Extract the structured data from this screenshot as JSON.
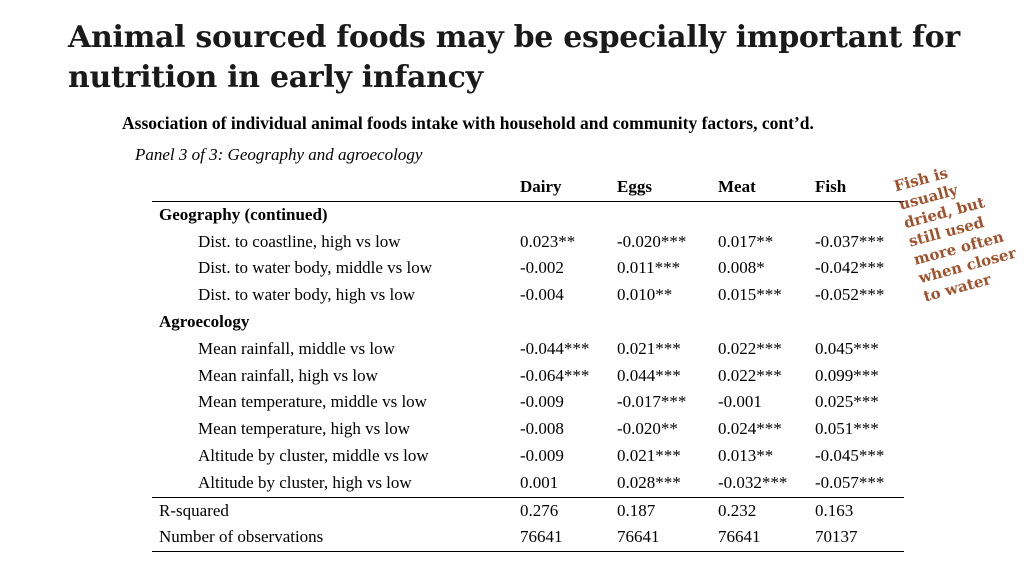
{
  "title": "Animal sourced foods may be especially important for nutrition in early infancy",
  "subtitle": "Association of individual animal foods intake with household and community factors, cont’d.",
  "panel": "Panel 3 of 3: Geography and agroecology",
  "table": {
    "columns": [
      "",
      "Dairy",
      "Eggs",
      "Meat",
      "Fish"
    ],
    "sections": [
      {
        "heading": "Geography (continued)",
        "rows": [
          {
            "label": "Dist. to coastline, high vs low",
            "dairy": "0.023**",
            "eggs": "-0.020***",
            "meat": "0.017**",
            "fish": "-0.037***"
          },
          {
            "label": "Dist. to water body, middle vs low",
            "dairy": "-0.002",
            "eggs": "0.011***",
            "meat": "0.008*",
            "fish": "-0.042***"
          },
          {
            "label": "Dist. to water body, high vs low",
            "dairy": "-0.004",
            "eggs": "0.010**",
            "meat": "0.015***",
            "fish": "-0.052***"
          }
        ]
      },
      {
        "heading": "Agroecology",
        "rows": [
          {
            "label": "Mean rainfall, middle vs low",
            "dairy": "-0.044***",
            "eggs": "0.021***",
            "meat": "0.022***",
            "fish": "0.045***"
          },
          {
            "label": "Mean rainfall, high vs low",
            "dairy": "-0.064***",
            "eggs": "0.044***",
            "meat": "0.022***",
            "fish": "0.099***"
          },
          {
            "label": "Mean temperature, middle vs low",
            "dairy": "-0.009",
            "eggs": "-0.017***",
            "meat": "-0.001",
            "fish": "0.025***"
          },
          {
            "label": "Mean temperature, high vs low",
            "dairy": "-0.008",
            "eggs": "-0.020**",
            "meat": "0.024***",
            "fish": "0.051***"
          },
          {
            "label": "Altitude by cluster, middle vs low",
            "dairy": "-0.009",
            "eggs": "0.021***",
            "meat": "0.013**",
            "fish": "-0.045***"
          },
          {
            "label": "Altitude by cluster, high vs low",
            "dairy": "0.001",
            "eggs": "0.028***",
            "meat": "-0.032***",
            "fish": "-0.057***"
          }
        ]
      }
    ],
    "stats": [
      {
        "label": "R-squared",
        "dairy": "0.276",
        "eggs": "0.187",
        "meat": "0.232",
        "fish": "0.163"
      },
      {
        "label": "Number of observations",
        "dairy": "76641",
        "eggs": "76641",
        "meat": "76641",
        "fish": "70137"
      }
    ]
  },
  "annotation": {
    "lines": [
      "Fish is",
      "usually",
      "dried, but",
      "still used",
      "more often",
      "when closer",
      "to water"
    ],
    "color": "#a0522d"
  }
}
